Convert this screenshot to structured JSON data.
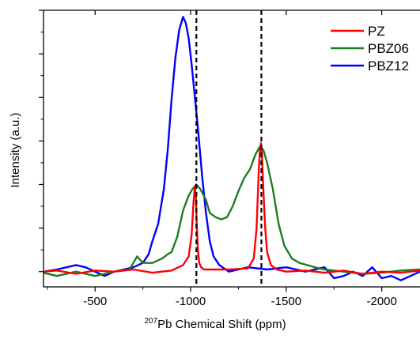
{
  "chart_data": {
    "type": "line",
    "xlabel": {
      "sup": "207",
      "text": "Pb Chemical Shift (ppm)"
    },
    "ylabel": "Intensity (a.u.)",
    "xlim": [
      -230,
      -2200
    ],
    "ylim": [
      -0.07,
      1.2
    ],
    "x_ticks": [
      -500,
      -1000,
      -1500,
      -2000
    ],
    "x_tick_labels": [
      "-500",
      "-1000",
      "-1500",
      "-2000"
    ],
    "y_ticks": [
      0,
      0.2,
      0.4,
      0.6,
      0.8,
      1.0,
      1.2
    ],
    "vlines": [
      -1030,
      -1370
    ],
    "legend_position": "top-right",
    "series": [
      {
        "name": "PZ",
        "color": "#ff0000",
        "x": [
          -230,
          -300,
          -400,
          -500,
          -600,
          -700,
          -800,
          -900,
          -960,
          -990,
          -1005,
          -1015,
          -1022,
          -1028,
          -1033,
          -1038,
          -1045,
          -1055,
          -1070,
          -1100,
          -1200,
          -1300,
          -1330,
          -1345,
          -1355,
          -1362,
          -1368,
          -1372,
          -1380,
          -1390,
          -1400,
          -1420,
          -1450,
          -1500,
          -1600,
          -1700,
          -1800,
          -1900,
          -2000,
          -2100,
          -2200
        ],
        "y": [
          0.0,
          0.005,
          -0.01,
          0.005,
          0.0,
          0.01,
          -0.005,
          0.005,
          0.03,
          0.07,
          0.17,
          0.32,
          0.39,
          0.33,
          0.19,
          0.1,
          0.04,
          0.02,
          0.01,
          0.01,
          0.01,
          0.015,
          0.06,
          0.2,
          0.43,
          0.56,
          0.59,
          0.56,
          0.38,
          0.2,
          0.09,
          0.03,
          0.01,
          0.0,
          0.005,
          -0.005,
          0.005,
          -0.01,
          0.0,
          -0.005,
          0.005
        ]
      },
      {
        "name": "PBZ06",
        "color": "#1f7d1f",
        "x": [
          -230,
          -300,
          -400,
          -500,
          -600,
          -680,
          -720,
          -750,
          -800,
          -850,
          -880,
          -900,
          -930,
          -960,
          -990,
          -1010,
          -1030,
          -1050,
          -1080,
          -1100,
          -1130,
          -1160,
          -1190,
          -1220,
          -1250,
          -1280,
          -1310,
          -1340,
          -1360,
          -1380,
          -1400,
          -1430,
          -1460,
          -1490,
          -1530,
          -1570,
          -1610,
          -1650,
          -1700,
          -1800,
          -1900,
          -2000,
          -2100,
          -2200
        ],
        "y": [
          -0.005,
          -0.02,
          0.0,
          -0.02,
          0.0,
          0.01,
          0.07,
          0.04,
          0.04,
          0.06,
          0.08,
          0.09,
          0.16,
          0.28,
          0.35,
          0.38,
          0.4,
          0.38,
          0.33,
          0.27,
          0.25,
          0.24,
          0.25,
          0.3,
          0.37,
          0.43,
          0.47,
          0.54,
          0.57,
          0.56,
          0.5,
          0.38,
          0.22,
          0.12,
          0.06,
          0.04,
          0.03,
          0.02,
          0.01,
          0.0,
          -0.01,
          -0.005,
          0.005,
          0.01
        ]
      },
      {
        "name": "PBZ12",
        "color": "#0000ff",
        "x": [
          -230,
          -300,
          -400,
          -450,
          -500,
          -550,
          -600,
          -650,
          -700,
          -750,
          -780,
          -800,
          -830,
          -860,
          -880,
          -900,
          -920,
          -940,
          -960,
          -975,
          -990,
          -1005,
          -1020,
          -1040,
          -1060,
          -1080,
          -1100,
          -1120,
          -1150,
          -1200,
          -1300,
          -1400,
          -1500,
          -1600,
          -1700,
          -1750,
          -1800,
          -1850,
          -1900,
          -1950,
          -2000,
          -2050,
          -2100,
          -2150,
          -2200
        ],
        "y": [
          0.0,
          0.01,
          0.03,
          0.02,
          0.0,
          -0.02,
          0.0,
          0.01,
          0.02,
          0.04,
          0.08,
          0.14,
          0.22,
          0.38,
          0.56,
          0.79,
          0.98,
          1.11,
          1.17,
          1.14,
          1.07,
          0.95,
          0.82,
          0.64,
          0.44,
          0.27,
          0.14,
          0.07,
          0.03,
          0.0,
          0.02,
          0.01,
          0.02,
          0.0,
          0.02,
          -0.03,
          -0.02,
          0.0,
          -0.02,
          0.02,
          -0.03,
          -0.02,
          -0.04,
          -0.02,
          0.0
        ]
      }
    ]
  }
}
